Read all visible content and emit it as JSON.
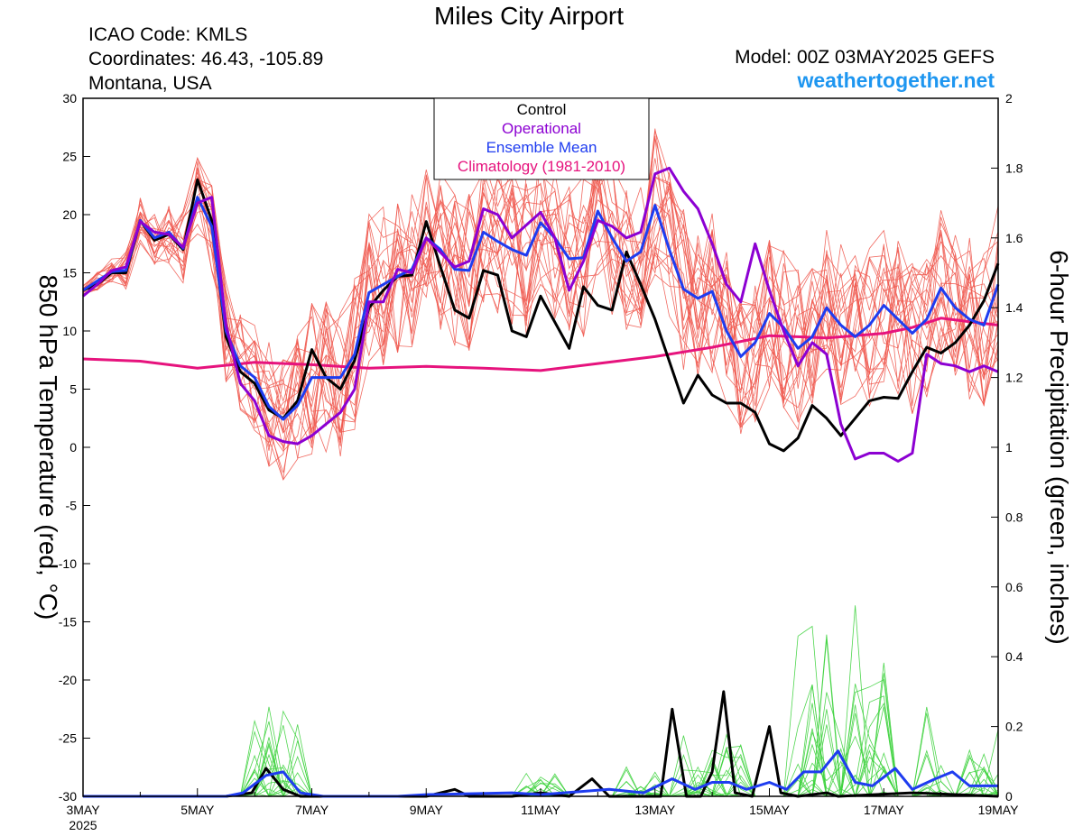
{
  "header": {
    "title": "Miles City Airport",
    "icao": "ICAO Code: KMLS",
    "coordinates": "Coordinates: 46.43, -105.89",
    "region": "Montana, USA",
    "model": "Model: 00Z 03MAY2025 GEFS",
    "site": "weathertogether.net"
  },
  "colors": {
    "control": "#000000",
    "operational": "#8c00d2",
    "ensemble_mean": "#1e3cf0",
    "climatology": "#e6137d",
    "members_temp": "#f05a50",
    "members_precip": "#3cd23c",
    "site": "#1e96f0"
  },
  "chart_data": {
    "type": "line",
    "title": "Miles City Airport",
    "ylabel": "850 hPa Temperature (red, °C)",
    "y2label": "6-hour Precipitation (green, inches)",
    "ylim": [
      -30,
      30
    ],
    "y2lim": [
      0,
      2
    ],
    "xlim": [
      0,
      16
    ],
    "x_unit": "days since 03MAY2025 00Z",
    "yticks": [
      "30",
      "25",
      "20",
      "15",
      "10",
      "5",
      "0",
      "-5",
      "-10",
      "-15",
      "-20",
      "-25",
      "-30"
    ],
    "y2ticks": [
      "2",
      "1.8",
      "1.6",
      "1.4",
      "1.2",
      "1",
      "0.8",
      "0.6",
      "0.4",
      "0.2",
      "0"
    ],
    "xticks": [
      {
        "x": 0,
        "label": "3MAY",
        "sub": "2025"
      },
      {
        "x": 2,
        "label": "5MAY"
      },
      {
        "x": 4,
        "label": "7MAY"
      },
      {
        "x": 6,
        "label": "9MAY"
      },
      {
        "x": 8,
        "label": "11MAY"
      },
      {
        "x": 10,
        "label": "13MAY"
      },
      {
        "x": 12,
        "label": "15MAY"
      },
      {
        "x": 14,
        "label": "17MAY"
      },
      {
        "x": 16,
        "label": "19MAY"
      }
    ],
    "legend": [
      "Control",
      "Operational",
      "Ensemble Mean",
      "Climatology (1981-2010)"
    ],
    "grid": false,
    "temperature_series": [
      {
        "name": "Control",
        "color": "#000000",
        "width": 3,
        "points": [
          [
            0,
            13.5
          ],
          [
            0.25,
            14
          ],
          [
            0.5,
            15
          ],
          [
            0.75,
            15
          ],
          [
            1,
            19.5
          ],
          [
            1.25,
            17.8
          ],
          [
            1.5,
            18.3
          ],
          [
            1.75,
            17
          ],
          [
            2,
            23
          ],
          [
            2.25,
            19.5
          ],
          [
            2.5,
            9.5
          ],
          [
            2.75,
            6.5
          ],
          [
            3,
            5.5
          ],
          [
            3.25,
            3.2
          ],
          [
            3.5,
            2.5
          ],
          [
            3.75,
            4
          ],
          [
            4,
            8.4
          ],
          [
            4.25,
            6
          ],
          [
            4.5,
            5
          ],
          [
            4.75,
            7.5
          ],
          [
            5,
            12
          ],
          [
            5.25,
            13.5
          ],
          [
            5.5,
            14.7
          ],
          [
            5.75,
            14.8
          ],
          [
            6,
            19.4
          ],
          [
            6.25,
            15.5
          ],
          [
            6.5,
            11.8
          ],
          [
            6.75,
            11.1
          ],
          [
            7,
            15.2
          ],
          [
            7.25,
            14.8
          ],
          [
            7.5,
            10
          ],
          [
            7.75,
            9.5
          ],
          [
            8,
            13
          ],
          [
            8.5,
            8.5
          ],
          [
            8.75,
            13.8
          ],
          [
            9,
            12.2
          ],
          [
            9.25,
            11.8
          ],
          [
            9.5,
            16.8
          ],
          [
            9.75,
            14
          ],
          [
            10,
            11
          ],
          [
            10.5,
            3.8
          ],
          [
            10.75,
            6.2
          ],
          [
            11,
            4.5
          ],
          [
            11.25,
            3.8
          ],
          [
            11.5,
            3.8
          ],
          [
            11.75,
            3
          ],
          [
            12,
            0.3
          ],
          [
            12.25,
            -0.3
          ],
          [
            12.5,
            0.8
          ],
          [
            12.75,
            3.6
          ],
          [
            13,
            2.5
          ],
          [
            13.25,
            1
          ],
          [
            13.5,
            2.5
          ],
          [
            13.75,
            4
          ],
          [
            14,
            4.3
          ],
          [
            14.25,
            4.2
          ],
          [
            14.5,
            6.5
          ],
          [
            14.75,
            8.6
          ],
          [
            15,
            8.1
          ],
          [
            15.25,
            9
          ],
          [
            15.5,
            10.5
          ],
          [
            15.75,
            12.6
          ],
          [
            16,
            15.8
          ]
        ]
      },
      {
        "name": "Operational",
        "color": "#8c00d2",
        "width": 3,
        "points": [
          [
            0,
            13
          ],
          [
            0.25,
            14
          ],
          [
            0.5,
            15.2
          ],
          [
            0.75,
            15.5
          ],
          [
            1,
            19.4
          ],
          [
            1.25,
            18.5
          ],
          [
            1.5,
            18.3
          ],
          [
            1.75,
            17.2
          ],
          [
            2,
            21
          ],
          [
            2.25,
            21.5
          ],
          [
            2.5,
            10.5
          ],
          [
            2.75,
            5.5
          ],
          [
            3,
            4
          ],
          [
            3.25,
            1
          ],
          [
            3.5,
            0.5
          ],
          [
            3.75,
            0.3
          ],
          [
            4,
            1
          ],
          [
            4.25,
            2
          ],
          [
            4.5,
            3
          ],
          [
            4.75,
            5
          ],
          [
            5,
            12.5
          ],
          [
            5.25,
            12.5
          ],
          [
            5.5,
            15.3
          ],
          [
            5.75,
            15
          ],
          [
            6,
            18
          ],
          [
            6.5,
            15.5
          ],
          [
            6.75,
            16
          ],
          [
            7,
            20.5
          ],
          [
            7.25,
            20
          ],
          [
            7.5,
            18
          ],
          [
            8,
            20.2
          ],
          [
            8.25,
            18
          ],
          [
            8.5,
            13.5
          ],
          [
            8.75,
            16
          ],
          [
            9,
            19.5
          ],
          [
            9.25,
            19
          ],
          [
            9.5,
            18
          ],
          [
            9.75,
            18.5
          ],
          [
            10,
            23.5
          ],
          [
            10.25,
            24
          ],
          [
            10.5,
            22
          ],
          [
            10.75,
            20.5
          ],
          [
            11,
            17.5
          ],
          [
            11.25,
            14
          ],
          [
            11.5,
            12.5
          ],
          [
            11.75,
            17.5
          ],
          [
            12,
            13.5
          ],
          [
            12.25,
            10
          ],
          [
            12.5,
            7
          ],
          [
            12.75,
            9
          ],
          [
            13,
            8
          ],
          [
            13.25,
            2
          ],
          [
            13.5,
            -1
          ],
          [
            13.75,
            -0.5
          ],
          [
            14,
            -0.5
          ],
          [
            14.25,
            -1.2
          ],
          [
            14.5,
            -0.5
          ],
          [
            14.75,
            8
          ],
          [
            15,
            7.2
          ],
          [
            15.25,
            7
          ],
          [
            15.5,
            6.5
          ],
          [
            15.75,
            7
          ],
          [
            16,
            6.5
          ]
        ]
      },
      {
        "name": "Ensemble Mean",
        "color": "#1e3cf0",
        "width": 3,
        "points": [
          [
            0,
            13.5
          ],
          [
            0.25,
            14.3
          ],
          [
            0.5,
            15.1
          ],
          [
            0.75,
            15.2
          ],
          [
            1,
            19.5
          ],
          [
            1.25,
            18
          ],
          [
            1.5,
            18.5
          ],
          [
            1.75,
            17.1
          ],
          [
            2,
            21.5
          ],
          [
            2.25,
            19
          ],
          [
            2.5,
            10
          ],
          [
            2.75,
            7
          ],
          [
            3,
            6
          ],
          [
            3.25,
            3.5
          ],
          [
            3.5,
            2.4
          ],
          [
            3.75,
            3.6
          ],
          [
            4,
            6
          ],
          [
            4.25,
            6
          ],
          [
            4.5,
            6
          ],
          [
            4.75,
            8
          ],
          [
            5,
            13.3
          ],
          [
            5.25,
            14
          ],
          [
            5.5,
            14.7
          ],
          [
            5.75,
            15.3
          ],
          [
            6,
            18
          ],
          [
            6.25,
            17
          ],
          [
            6.5,
            15.3
          ],
          [
            6.75,
            15.2
          ],
          [
            7,
            18.5
          ],
          [
            7.25,
            17.7
          ],
          [
            7.5,
            17
          ],
          [
            7.75,
            16.5
          ],
          [
            8,
            19.3
          ],
          [
            8.25,
            18
          ],
          [
            8.5,
            16.2
          ],
          [
            8.75,
            16.3
          ],
          [
            9,
            20.3
          ],
          [
            9.25,
            18
          ],
          [
            9.5,
            16
          ],
          [
            9.75,
            16.8
          ],
          [
            10,
            20.8
          ],
          [
            10.25,
            17
          ],
          [
            10.5,
            13.6
          ],
          [
            10.75,
            12.8
          ],
          [
            11,
            13.4
          ],
          [
            11.25,
            10
          ],
          [
            11.5,
            7.8
          ],
          [
            11.75,
            9
          ],
          [
            12,
            11.5
          ],
          [
            12.25,
            10.3
          ],
          [
            12.5,
            8.5
          ],
          [
            12.75,
            9.5
          ],
          [
            13,
            12
          ],
          [
            13.25,
            10.5
          ],
          [
            13.5,
            9.5
          ],
          [
            13.75,
            10.5
          ],
          [
            14,
            12.2
          ],
          [
            14.25,
            11
          ],
          [
            14.5,
            9.8
          ],
          [
            14.75,
            11
          ],
          [
            15,
            13.7
          ],
          [
            15.25,
            12
          ],
          [
            15.5,
            11
          ],
          [
            15.75,
            10.5
          ],
          [
            16,
            14
          ]
        ]
      },
      {
        "name": "Climatology (1981-2010)",
        "color": "#e6137d",
        "width": 3,
        "points": [
          [
            0,
            7.6
          ],
          [
            1,
            7.4
          ],
          [
            2,
            6.8
          ],
          [
            3,
            7.3
          ],
          [
            4,
            7.1
          ],
          [
            5,
            6.8
          ],
          [
            6,
            6.95
          ],
          [
            7,
            6.8
          ],
          [
            8,
            6.6
          ],
          [
            9,
            7.2
          ],
          [
            10,
            7.8
          ],
          [
            11,
            8.6
          ],
          [
            12,
            9.6
          ],
          [
            13,
            9.4
          ],
          [
            14,
            9.8
          ],
          [
            14.5,
            10.3
          ],
          [
            15,
            11.1
          ],
          [
            15.5,
            10.8
          ],
          [
            16,
            10.5
          ]
        ]
      }
    ],
    "precip_series": [
      {
        "name": "Control",
        "color": "#000000",
        "width": 3,
        "points": [
          [
            0,
            0
          ],
          [
            2.5,
            0
          ],
          [
            2.95,
            0.01
          ],
          [
            3.2,
            0.08
          ],
          [
            3.5,
            0.02
          ],
          [
            3.8,
            0
          ],
          [
            6,
            0
          ],
          [
            6.5,
            0.02
          ],
          [
            6.75,
            0
          ],
          [
            7.5,
            0
          ],
          [
            8,
            0.01
          ],
          [
            8.5,
            0.0
          ],
          [
            8.9,
            0.05
          ],
          [
            9.2,
            0
          ],
          [
            10.1,
            0
          ],
          [
            10.3,
            0.25
          ],
          [
            10.55,
            0
          ],
          [
            10.8,
            0
          ],
          [
            11,
            0.07
          ],
          [
            11.2,
            0.3
          ],
          [
            11.4,
            0.01
          ],
          [
            11.7,
            0
          ],
          [
            12,
            0.2
          ],
          [
            12.2,
            0.01
          ],
          [
            12.5,
            0
          ],
          [
            13,
            0.01
          ],
          [
            13.2,
            0
          ],
          [
            14.5,
            0.01
          ],
          [
            16,
            0
          ]
        ]
      },
      {
        "name": "Ensemble Mean",
        "color": "#1e3cf0",
        "width": 3,
        "points": [
          [
            0,
            0
          ],
          [
            2.5,
            0
          ],
          [
            2.8,
            0.01
          ],
          [
            3.2,
            0.06
          ],
          [
            3.5,
            0.07
          ],
          [
            3.8,
            0.01
          ],
          [
            4.2,
            0
          ],
          [
            5.5,
            0
          ],
          [
            6,
            0.005
          ],
          [
            7.5,
            0.01
          ],
          [
            8,
            0.005
          ],
          [
            9.2,
            0.02
          ],
          [
            9.8,
            0.01
          ],
          [
            10.3,
            0.05
          ],
          [
            10.7,
            0.02
          ],
          [
            11,
            0.04
          ],
          [
            11.3,
            0.04
          ],
          [
            11.6,
            0.02
          ],
          [
            12,
            0.04
          ],
          [
            12.3,
            0.02
          ],
          [
            12.6,
            0.07
          ],
          [
            12.9,
            0.07
          ],
          [
            13.2,
            0.13
          ],
          [
            13.5,
            0.04
          ],
          [
            13.8,
            0.03
          ],
          [
            14.2,
            0.08
          ],
          [
            14.5,
            0.02
          ],
          [
            14.9,
            0.05
          ],
          [
            15.2,
            0.07
          ],
          [
            15.5,
            0.03
          ],
          [
            15.8,
            0.03
          ],
          [
            16,
            0.03
          ]
        ]
      }
    ],
    "members_note": "21 GEFS members drawn as thin red (temperature) and thin green (precipitation) lines"
  }
}
